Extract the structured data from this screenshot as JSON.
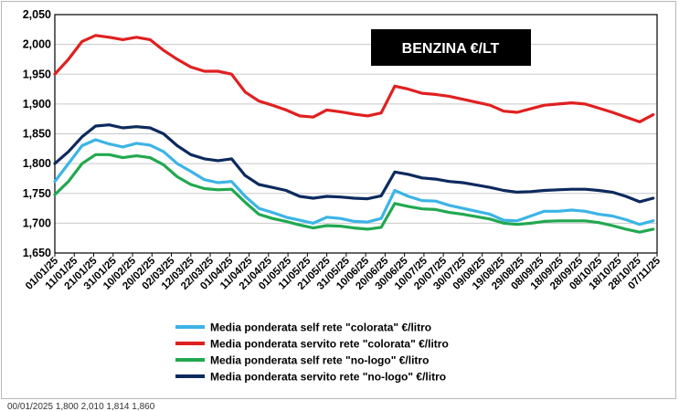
{
  "chart_data": {
    "type": "line",
    "title": "BENZINA €/LT",
    "xlabel": "",
    "ylabel": "",
    "ylim": [
      1.65,
      2.05
    ],
    "yticks": [
      1.65,
      1.7,
      1.75,
      1.8,
      1.85,
      1.9,
      1.95,
      2.0,
      2.05
    ],
    "ytick_labels": [
      "1,650",
      "1,700",
      "1,750",
      "1,800",
      "1,850",
      "1,900",
      "1,950",
      "2,000",
      "2,050"
    ],
    "x_dates": [
      "2025-01-01",
      "2025-01-08",
      "2025-01-15",
      "2025-01-22",
      "2025-01-29",
      "2025-02-05",
      "2025-02-12",
      "2025-02-19",
      "2025-02-26",
      "2025-03-05",
      "2025-03-12",
      "2025-03-19",
      "2025-03-26",
      "2025-04-02",
      "2025-04-09",
      "2025-04-16",
      "2025-04-23",
      "2025-04-30",
      "2025-05-07",
      "2025-05-14",
      "2025-05-21",
      "2025-05-28",
      "2025-06-04",
      "2025-06-11",
      "2025-06-18",
      "2025-06-25",
      "2025-07-02",
      "2025-07-09",
      "2025-07-16",
      "2025-07-23",
      "2025-07-30",
      "2025-08-06",
      "2025-08-13",
      "2025-08-20",
      "2025-08-27",
      "2025-09-03",
      "2025-09-10",
      "2025-09-17",
      "2025-09-24",
      "2025-10-01",
      "2025-10-08",
      "2025-10-15",
      "2025-10-22",
      "2025-10-29",
      "2025-11-05"
    ],
    "x_tick_labels": [
      "01/01/25",
      "11/01/25",
      "21/01/25",
      "31/01/25",
      "10/02/25",
      "20/02/25",
      "02/03/25",
      "12/03/25",
      "22/03/25",
      "01/04/25",
      "11/04/25",
      "21/04/25",
      "01/05/25",
      "11/05/25",
      "21/05/25",
      "31/05/25",
      "10/06/25",
      "20/06/25",
      "30/06/25",
      "10/07/25",
      "20/07/25",
      "30/07/25",
      "09/08/25",
      "19/08/25",
      "29/08/25",
      "08/09/25",
      "18/09/25",
      "28/09/25",
      "08/10/25",
      "18/10/25",
      "28/10/25",
      "07/11/25"
    ],
    "series": [
      {
        "name": "Media ponderata self rete \"colorata\" €/litro",
        "color": "#3cb4e6",
        "values": [
          1.77,
          1.8,
          1.83,
          1.84,
          1.833,
          1.828,
          1.834,
          1.831,
          1.82,
          1.8,
          1.787,
          1.773,
          1.768,
          1.77,
          1.745,
          1.725,
          1.718,
          1.71,
          1.705,
          1.7,
          1.71,
          1.708,
          1.703,
          1.702,
          1.708,
          1.755,
          1.745,
          1.738,
          1.737,
          1.73,
          1.725,
          1.72,
          1.715,
          1.705,
          1.704,
          1.712,
          1.72,
          1.72,
          1.722,
          1.72,
          1.715,
          1.712,
          1.706,
          1.698,
          1.704
        ]
      },
      {
        "name": "Media ponderata servito rete \"colorata\" €/litro",
        "color": "#e02020",
        "values": [
          1.95,
          1.975,
          2.005,
          2.015,
          2.012,
          2.008,
          2.012,
          2.008,
          1.99,
          1.975,
          1.962,
          1.955,
          1.955,
          1.95,
          1.92,
          1.905,
          1.898,
          1.89,
          1.88,
          1.878,
          1.89,
          1.887,
          1.883,
          1.88,
          1.885,
          1.93,
          1.925,
          1.918,
          1.916,
          1.913,
          1.908,
          1.903,
          1.898,
          1.888,
          1.886,
          1.892,
          1.898,
          1.9,
          1.902,
          1.9,
          1.893,
          1.886,
          1.878,
          1.87,
          1.882
        ]
      },
      {
        "name": "Media ponderata self rete \"no-logo\" €/litro",
        "color": "#22a850",
        "values": [
          1.748,
          1.77,
          1.8,
          1.815,
          1.815,
          1.81,
          1.813,
          1.81,
          1.798,
          1.778,
          1.765,
          1.758,
          1.756,
          1.757,
          1.735,
          1.715,
          1.708,
          1.703,
          1.697,
          1.692,
          1.696,
          1.695,
          1.692,
          1.69,
          1.693,
          1.733,
          1.728,
          1.724,
          1.723,
          1.718,
          1.715,
          1.711,
          1.707,
          1.7,
          1.698,
          1.7,
          1.703,
          1.704,
          1.704,
          1.704,
          1.701,
          1.696,
          1.69,
          1.685,
          1.69
        ]
      },
      {
        "name": "Media ponderata servito rete \"no-logo\" €/litro",
        "color": "#0d2a5e",
        "values": [
          1.8,
          1.82,
          1.845,
          1.863,
          1.865,
          1.86,
          1.862,
          1.86,
          1.85,
          1.83,
          1.815,
          1.808,
          1.805,
          1.808,
          1.78,
          1.765,
          1.76,
          1.755,
          1.745,
          1.742,
          1.745,
          1.744,
          1.742,
          1.741,
          1.746,
          1.786,
          1.782,
          1.776,
          1.774,
          1.77,
          1.768,
          1.764,
          1.76,
          1.755,
          1.752,
          1.753,
          1.755,
          1.756,
          1.757,
          1.757,
          1.755,
          1.752,
          1.745,
          1.736,
          1.742
        ]
      }
    ],
    "legend_position": "bottom",
    "grid": true
  },
  "bottom_cut_text": "00/01/2025       1,800       2,010       1,814       1,860"
}
